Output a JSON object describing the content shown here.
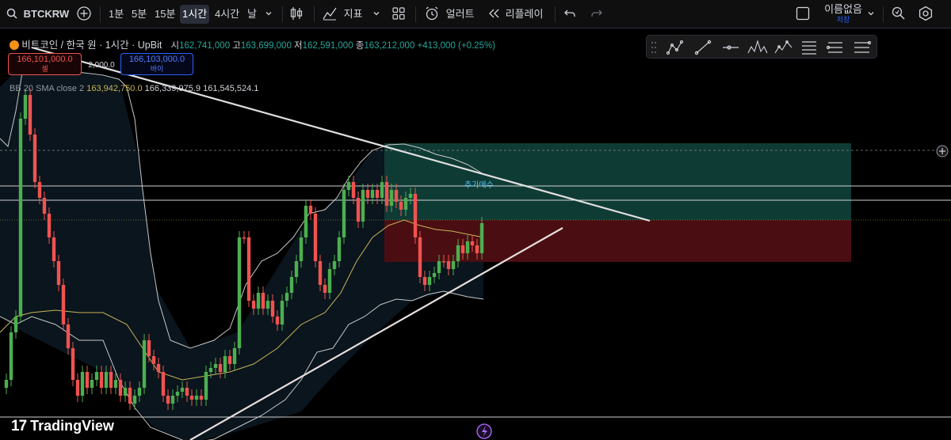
{
  "toolbar": {
    "symbol": "BTCKRW",
    "intervals": [
      "1분",
      "5분",
      "15분",
      "1시간",
      "4시간",
      "날"
    ],
    "active_interval": "1시간",
    "indicators_label": "지표",
    "alert_label": "얼러트",
    "replay_label": "리플레이",
    "layout_name": "이름없음",
    "layout_sub": "저장"
  },
  "legend": {
    "title": "비트코인 / 한국 원 · 1시간 · UpBit",
    "open_label": "시",
    "open": "162,741,000",
    "high_label": "고",
    "high": "163,699,000",
    "low_label": "저",
    "low": "162,591,000",
    "close_label": "종",
    "close": "163,212,000",
    "change": "+413,000 (+0.25%)"
  },
  "order": {
    "sell_price": "166,101,000.0",
    "sell_label": "셀",
    "spread": "2,000.0",
    "buy_price": "166,103,000.0",
    "buy_label": "바이"
  },
  "indicator": {
    "name": "BB 20 SMA close 2",
    "basis": "163,942,750.0",
    "upper": "166,339,975.9",
    "lower": "161,545,524.1"
  },
  "annotation": "추가매수",
  "brand": "TradingView",
  "colors": {
    "up": "#26a69a",
    "up_candle": "#4caf50",
    "down": "#ef5350",
    "band_line": "#c8c8c8",
    "basis_line": "#c9b458",
    "profit_zone": "#0f3b35",
    "loss_zone": "#4a0e12"
  },
  "icons": [
    "search-icon",
    "add-symbol-icon",
    "candle-style-icon",
    "indicators-icon",
    "templates-icon",
    "alert-icon",
    "replay-icon",
    "undo-icon",
    "redo-icon",
    "layout-icon",
    "chevron-down-icon",
    "quick-search-icon",
    "settings-icon",
    "plus-circle-icon",
    "lightning-icon"
  ]
}
